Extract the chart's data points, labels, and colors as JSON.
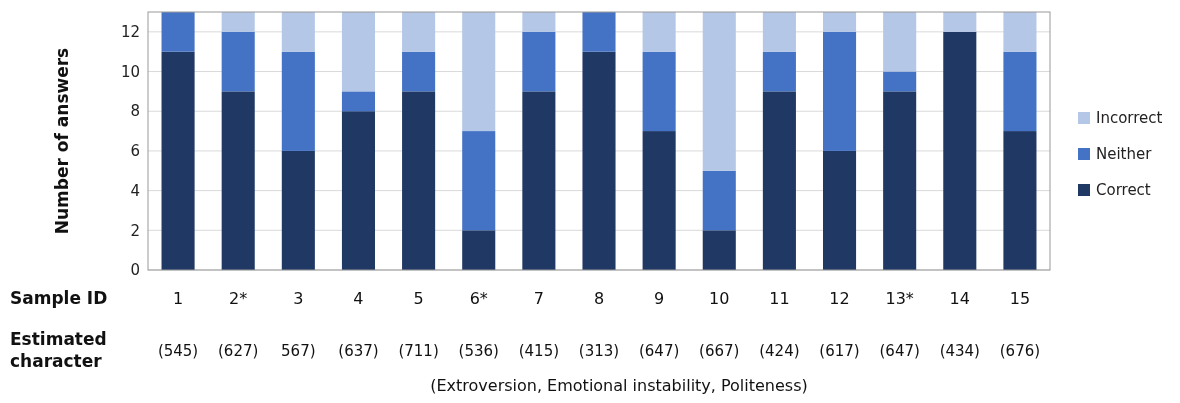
{
  "chart_data": {
    "type": "bar",
    "stacked": true,
    "ylabel": "Number of answers",
    "xlabel": "(Extroversion, Emotional instability, Politeness)",
    "categories": [
      "1",
      "2*",
      "3",
      "4",
      "5",
      "6*",
      "7",
      "8",
      "9",
      "10",
      "11",
      "12",
      "13*",
      "14",
      "15"
    ],
    "series": [
      {
        "name": "Correct",
        "color": "#203864",
        "values": [
          11,
          9,
          6,
          8,
          9,
          2,
          9,
          11,
          7,
          2,
          9,
          6,
          9,
          12,
          7
        ]
      },
      {
        "name": "Neither",
        "color": "#4472c4",
        "values": [
          2,
          3,
          5,
          1,
          2,
          5,
          3,
          2,
          4,
          3,
          2,
          6,
          1,
          0,
          4
        ]
      },
      {
        "name": "Incorrect",
        "color": "#b4c7e7",
        "values": [
          0,
          1,
          2,
          4,
          2,
          6,
          1,
          0,
          2,
          8,
          2,
          1,
          3,
          1,
          2
        ]
      }
    ],
    "ylim": [
      0,
      13
    ],
    "yticks": [
      0,
      2,
      4,
      6,
      8,
      10,
      12
    ],
    "grid": "y",
    "legend": "right",
    "annotations": [
      "Sample ID",
      "Estimated character",
      "(545)",
      "(627)",
      "567)",
      "(637)",
      "(711)",
      "(536)",
      "(415)",
      "(313)",
      "(647)",
      "(667)",
      "(424)",
      "(617)",
      "(647)",
      "(434)",
      "(676)"
    ]
  }
}
